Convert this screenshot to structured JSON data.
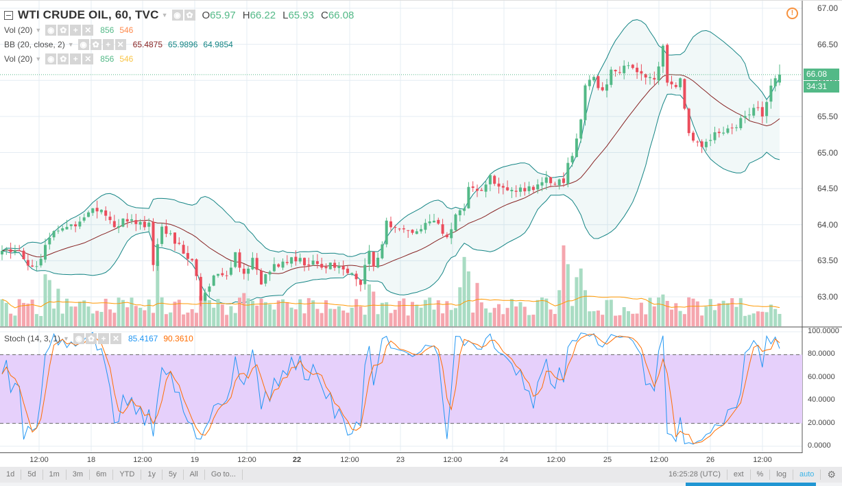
{
  "header": {
    "symbol_title": "WTI CRUDE OIL, 60, TVC",
    "ohlc": {
      "o_label": "O",
      "o": "65.97",
      "h_label": "H",
      "h": "66.22",
      "l_label": "L",
      "l": "65.93",
      "c_label": "C",
      "c": "66.08"
    }
  },
  "indicators": [
    {
      "name": "Vol (20)",
      "v1": "856",
      "v2": "546",
      "c1": "#53b987",
      "c2": "#ff8a4c"
    },
    {
      "name": "BB (20, close, 2)",
      "v1": "65.4875",
      "v2": "65.9896",
      "v3": "64.9854",
      "c1": "#872323",
      "c2": "#138484",
      "c3": "#138484"
    },
    {
      "name": "Vol (20)",
      "v1": "856",
      "v2": "546",
      "c1": "#53b987",
      "c2": "#f9c548"
    }
  ],
  "stoch": {
    "name": "Stoch (14, 3, 1)",
    "k": "85.4167",
    "d": "90.3610",
    "k_color": "#2196f3",
    "d_color": "#ff6d00"
  },
  "price_axis": [
    "67.00",
    "66.50",
    "66.00",
    "65.50",
    "65.00",
    "64.50",
    "64.00",
    "63.50",
    "63.00"
  ],
  "stoch_axis": [
    "100.0000",
    "80.0000",
    "60.0000",
    "40.0000",
    "20.0000",
    "0.0000"
  ],
  "time_axis": [
    "12:00",
    "18",
    "12:00",
    "19",
    "12:00",
    "22",
    "12:00",
    "23",
    "12:00",
    "24",
    "12:00",
    "25",
    "12:00",
    "26",
    "12:00"
  ],
  "last_price": "66.08",
  "countdown": "34:31",
  "toolbar": {
    "ranges": [
      "1d",
      "5d",
      "1m",
      "3m",
      "6m",
      "YTD",
      "1y",
      "5y",
      "All",
      "Go to..."
    ],
    "clock": "16:25:28 (UTC)",
    "options": [
      "ext",
      "%",
      "log",
      "auto"
    ]
  },
  "colors": {
    "up": "#53b987",
    "down": "#eb4d5c",
    "vol_up": "#a9dcc3",
    "vol_down": "#f5a6ae",
    "bb_band": "#138484",
    "bb_basis": "#872323",
    "vol_ma": "#ff9800",
    "stoch_band": "#e6d0fb"
  },
  "chart_data": {
    "type": "candlestick",
    "title": "WTI CRUDE OIL, 60, TVC",
    "ylim": [
      62.6,
      67.1
    ],
    "stoch_ylim": [
      0,
      100
    ],
    "close_keypoints_bar_price": [
      [
        0,
        63.6
      ],
      [
        3,
        63.65
      ],
      [
        7,
        63.4
      ],
      [
        9,
        63.55
      ],
      [
        11,
        63.8
      ],
      [
        14,
        64.0
      ],
      [
        17,
        64.0
      ],
      [
        20,
        64.2
      ],
      [
        23,
        64.25
      ],
      [
        26,
        64.0
      ],
      [
        29,
        64.05
      ],
      [
        32,
        64.0
      ],
      [
        34,
        64.0
      ],
      [
        35,
        63.5
      ],
      [
        37,
        64.0
      ],
      [
        38,
        63.9
      ],
      [
        41,
        63.7
      ],
      [
        44,
        63.5
      ],
      [
        46,
        63.0
      ],
      [
        49,
        63.3
      ],
      [
        52,
        63.3
      ],
      [
        54,
        63.6
      ],
      [
        56,
        63.3
      ],
      [
        58,
        63.5
      ],
      [
        60,
        63.2
      ],
      [
        62,
        63.4
      ],
      [
        65,
        63.5
      ],
      [
        68,
        63.5
      ],
      [
        71,
        63.45
      ],
      [
        74,
        63.45
      ],
      [
        77,
        63.4
      ],
      [
        80,
        63.3
      ],
      [
        82,
        63.3
      ],
      [
        83,
        63.2
      ],
      [
        85,
        63.6
      ],
      [
        86,
        63.4
      ],
      [
        88,
        63.7
      ],
      [
        89,
        64.0
      ],
      [
        92,
        63.9
      ],
      [
        95,
        63.9
      ],
      [
        98,
        64.0
      ],
      [
        101,
        64.0
      ],
      [
        103,
        63.8
      ],
      [
        105,
        64.1
      ],
      [
        107,
        64.2
      ],
      [
        108,
        64.5
      ],
      [
        111,
        64.5
      ],
      [
        113,
        64.7
      ],
      [
        115,
        64.5
      ],
      [
        118,
        64.45
      ],
      [
        122,
        64.5
      ],
      [
        125,
        64.6
      ],
      [
        128,
        64.6
      ],
      [
        130,
        64.6
      ],
      [
        132,
        65.0
      ],
      [
        134,
        65.5
      ],
      [
        135,
        65.9
      ],
      [
        137,
        66.0
      ],
      [
        139,
        65.9
      ],
      [
        141,
        66.1
      ],
      [
        143,
        66.15
      ],
      [
        146,
        66.15
      ],
      [
        149,
        66.05
      ],
      [
        151,
        66.0
      ],
      [
        153,
        66.5
      ],
      [
        154,
        66.0
      ],
      [
        156,
        65.9
      ],
      [
        157,
        66.0
      ],
      [
        159,
        65.3
      ],
      [
        161,
        65.1
      ],
      [
        163,
        65.15
      ],
      [
        165,
        65.3
      ],
      [
        168,
        65.35
      ],
      [
        170,
        65.4
      ],
      [
        172,
        65.55
      ],
      [
        175,
        65.6
      ],
      [
        176,
        65.55
      ],
      [
        178,
        65.9
      ],
      [
        180,
        66.08
      ]
    ],
    "volume_spikes_bar_value": [
      [
        10,
        3600
      ],
      [
        11,
        3200
      ],
      [
        13,
        2600
      ],
      [
        36,
        4500
      ],
      [
        37,
        2000
      ],
      [
        40,
        1700
      ],
      [
        46,
        2100
      ],
      [
        47,
        2200
      ],
      [
        56,
        2300
      ],
      [
        60,
        1900
      ],
      [
        85,
        2900
      ],
      [
        86,
        2400
      ],
      [
        106,
        2700
      ],
      [
        107,
        4800
      ],
      [
        108,
        3800
      ],
      [
        110,
        3000
      ],
      [
        129,
        2500
      ],
      [
        130,
        5600
      ],
      [
        131,
        4300
      ],
      [
        133,
        3400
      ],
      [
        134,
        4000
      ],
      [
        135,
        2500
      ],
      [
        153,
        2200
      ],
      [
        159,
        2000
      ],
      [
        178,
        1500
      ],
      [
        179,
        1200
      ]
    ],
    "last_volume": 856,
    "volume_ma": 546
  }
}
